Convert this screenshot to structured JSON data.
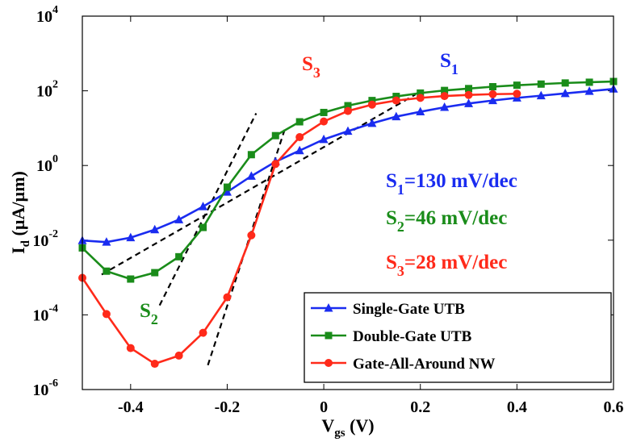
{
  "chart_data": {
    "type": "line",
    "xlabel": {
      "main": "V",
      "sub": "gs",
      "rest": " (V)"
    },
    "ylabel": {
      "main": "I",
      "sub": "d",
      "rest": " (µA/µm)"
    },
    "xlim": [
      -0.5,
      0.6
    ],
    "ylim": [
      -6,
      4
    ],
    "yscale": "log",
    "x_ticks": [
      {
        "v": -0.4,
        "label": "-0.4"
      },
      {
        "v": -0.2,
        "label": "-0.2"
      },
      {
        "v": 0,
        "label": "0"
      },
      {
        "v": 0.2,
        "label": "0.2"
      },
      {
        "v": 0.4,
        "label": "0.4"
      },
      {
        "v": 0.6,
        "label": "0.6"
      }
    ],
    "y_ticks": [
      {
        "exp": -6,
        "base": "10",
        "sup": "-6"
      },
      {
        "exp": -4,
        "base": "10",
        "sup": "-4"
      },
      {
        "exp": -2,
        "base": "10",
        "sup": "-2"
      },
      {
        "exp": 0,
        "base": "10",
        "sup": "0"
      },
      {
        "exp": 2,
        "base": "10",
        "sup": "2"
      },
      {
        "exp": 4,
        "base": "10",
        "sup": "4"
      }
    ],
    "legend_position": "bottom-right",
    "series": [
      {
        "name": "Single-Gate UTB",
        "color": "#1a2cf0",
        "marker": "triangle",
        "x": [
          -0.5,
          -0.45,
          -0.4,
          -0.35,
          -0.3,
          -0.25,
          -0.2,
          -0.15,
          -0.1,
          -0.05,
          0,
          0.05,
          0.1,
          0.15,
          0.2,
          0.25,
          0.3,
          0.35,
          0.4,
          0.45,
          0.5,
          0.55,
          0.6
        ],
        "y": [
          0.0098,
          0.0089,
          0.0117,
          0.0191,
          0.0355,
          0.0794,
          0.195,
          0.52,
          1.26,
          2.51,
          5.0,
          8.3,
          13.5,
          20.4,
          27.5,
          36.3,
          45.7,
          55.0,
          64.6,
          74.1,
          85.1,
          97.7,
          112.2
        ]
      },
      {
        "name": "Double-Gate UTB",
        "color": "#1a8c1a",
        "marker": "square",
        "x": [
          -0.5,
          -0.45,
          -0.4,
          -0.35,
          -0.3,
          -0.25,
          -0.2,
          -0.15,
          -0.1,
          -0.05,
          0,
          0.05,
          0.1,
          0.15,
          0.2,
          0.25,
          0.3,
          0.35,
          0.4,
          0.45,
          0.5,
          0.55,
          0.6
        ],
        "y": [
          0.0062,
          0.00148,
          0.00091,
          0.00135,
          0.0036,
          0.0219,
          0.263,
          1.95,
          6.3,
          14.8,
          26.3,
          40.0,
          55.0,
          70.8,
          87.1,
          102.3,
          114.8,
          128.8,
          141.3,
          151.4,
          162.2,
          169.8,
          177.8
        ]
      },
      {
        "name": "Gate-All-Around NW",
        "color": "#ff2a1a",
        "marker": "circle",
        "x": [
          -0.5,
          -0.45,
          -0.4,
          -0.35,
          -0.3,
          -0.25,
          -0.2,
          -0.15,
          -0.1,
          -0.05,
          0,
          0.05,
          0.1,
          0.15,
          0.2,
          0.25,
          0.3,
          0.35,
          0.4
        ],
        "y": [
          0.00098,
          0.000105,
          1.29e-05,
          4.9e-06,
          8.1e-06,
          3.31e-05,
          0.000295,
          0.0135,
          1.1,
          5.75,
          15.1,
          28.8,
          42.7,
          55.0,
          64.6,
          72.4,
          77.6,
          81.3,
          83.2
        ]
      }
    ],
    "slope_lines": [
      {
        "label_main": "S",
        "label_sub": "1",
        "color": "#1a2cf0",
        "from": [
          -0.46,
          0.0012
        ],
        "to": [
          0.19,
          80
        ]
      },
      {
        "label_main": "S",
        "label_sub": "2",
        "color": "#1a8c1a",
        "from": [
          -0.34,
          0.00018
        ],
        "to": [
          -0.14,
          25
        ]
      },
      {
        "label_main": "S",
        "label_sub": "3",
        "color": "#ff2a1a",
        "from": [
          -0.24,
          4.5e-06
        ],
        "to": [
          -0.08,
          10
        ]
      }
    ],
    "annotations": [
      {
        "main": "S",
        "sub": "1",
        "rest": "=130 mV/dec",
        "color": "#1a2cf0"
      },
      {
        "main": "S",
        "sub": "2",
        "rest": "=46 mV/dec",
        "color": "#1a8c1a"
      },
      {
        "main": "S",
        "sub": "3",
        "rest": "=28 mV/dec",
        "color": "#ff2a1a"
      }
    ]
  }
}
